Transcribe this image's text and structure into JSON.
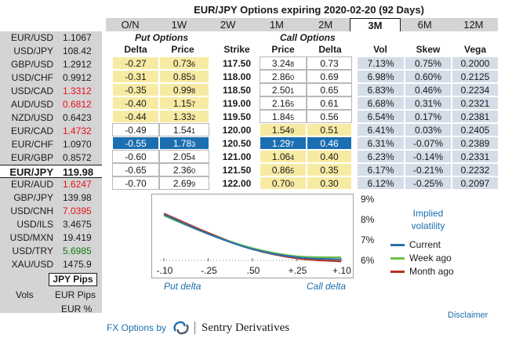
{
  "title": "EUR/JPY Options expiring 2020-02-20 (92 Days)",
  "tabs": [
    "O/N",
    "1W",
    "2W",
    "1M",
    "2M",
    "3M",
    "6M",
    "12M"
  ],
  "active_tab": "3M",
  "left": {
    "rates": [
      {
        "pair": "EUR/USD",
        "rate": "1.1067",
        "color": "black"
      },
      {
        "pair": "USD/JPY",
        "rate": "108.42",
        "color": "black"
      },
      {
        "pair": "GBP/USD",
        "rate": "1.2912",
        "color": "black"
      },
      {
        "pair": "USD/CHF",
        "rate": "0.9912",
        "color": "black"
      },
      {
        "pair": "USD/CAD",
        "rate": "1.3312",
        "color": "red"
      },
      {
        "pair": "AUD/USD",
        "rate": "0.6812",
        "color": "red"
      },
      {
        "pair": "NZD/USD",
        "rate": "0.6423",
        "color": "black"
      },
      {
        "pair": "EUR/CAD",
        "rate": "1.4732",
        "color": "red"
      },
      {
        "pair": "EUR/CHF",
        "rate": "1.0970",
        "color": "black"
      },
      {
        "pair": "EUR/GBP",
        "rate": "0.8572",
        "color": "black"
      },
      {
        "pair": "EUR/JPY",
        "rate": "119.98",
        "color": "black",
        "selected": true
      },
      {
        "pair": "EUR/AUD",
        "rate": "1.6247",
        "color": "red"
      },
      {
        "pair": "GBP/JPY",
        "rate": "139.98",
        "color": "black"
      },
      {
        "pair": "USD/CNH",
        "rate": "7.0395",
        "color": "red"
      },
      {
        "pair": "USD/ILS",
        "rate": "3.4675",
        "color": "black"
      },
      {
        "pair": "USD/MXN",
        "rate": "19.419",
        "color": "black"
      },
      {
        "pair": "USD/TRY",
        "rate": "5.6985",
        "color": "green"
      },
      {
        "pair": "XAU/USD",
        "rate": "1475.9",
        "color": "black"
      }
    ],
    "pips_selected": "JPY Pips",
    "vols_label": "Vols",
    "eur_pips": "EUR Pips",
    "eur_pct": "EUR %"
  },
  "table": {
    "put_header": "Put Options",
    "call_header": "Call Options",
    "columns": {
      "put_delta": "Delta",
      "put_price": "Price",
      "strike": "Strike",
      "call_price": "Price",
      "call_delta": "Delta",
      "vol": "Vol",
      "skew": "Skew",
      "vega": "Vega"
    },
    "rows": [
      {
        "put_delta": "-0.27",
        "put_price": "0.73",
        "put_price_sub": "6",
        "strike": "117.50",
        "call_price": "3.24",
        "call_price_sub": "8",
        "call_delta": "0.73",
        "vol": "7.13%",
        "skew": "0.75%",
        "vega": "0.2000"
      },
      {
        "put_delta": "-0.31",
        "put_price": "0.85",
        "put_price_sub": "3",
        "strike": "118.00",
        "call_price": "2.86",
        "call_price_sub": "0",
        "call_delta": "0.69",
        "vol": "6.98%",
        "skew": "0.60%",
        "vega": "0.2125"
      },
      {
        "put_delta": "-0.35",
        "put_price": "0.99",
        "put_price_sub": "8",
        "strike": "118.50",
        "call_price": "2.50",
        "call_price_sub": "1",
        "call_delta": "0.65",
        "vol": "6.83%",
        "skew": "0.46%",
        "vega": "0.2234"
      },
      {
        "put_delta": "-0.40",
        "put_price": "1.15",
        "put_price_sub": "7",
        "strike": "119.00",
        "call_price": "2.16",
        "call_price_sub": "5",
        "call_delta": "0.61",
        "vol": "6.68%",
        "skew": "0.31%",
        "vega": "0.2321"
      },
      {
        "put_delta": "-0.44",
        "put_price": "1.33",
        "put_price_sub": "2",
        "strike": "119.50",
        "call_price": "1.84",
        "call_price_sub": "5",
        "call_delta": "0.56",
        "vol": "6.54%",
        "skew": "0.17%",
        "vega": "0.2381"
      },
      {
        "put_delta": "-0.49",
        "put_price": "1.54",
        "put_price_sub": "1",
        "strike": "120.00",
        "call_price": "1.54",
        "call_price_sub": "9",
        "call_delta": "0.51",
        "vol": "6.41%",
        "skew": "0.03%",
        "vega": "0.2405"
      },
      {
        "put_delta": "-0.55",
        "put_price": "1.78",
        "put_price_sub": "3",
        "strike": "120.50",
        "call_price": "1.29",
        "call_price_sub": "7",
        "call_delta": "0.46",
        "vol": "6.31%",
        "skew": "-0.07%",
        "vega": "0.2389"
      },
      {
        "put_delta": "-0.60",
        "put_price": "2.05",
        "put_price_sub": "4",
        "strike": "121.00",
        "call_price": "1.06",
        "call_price_sub": "4",
        "call_delta": "0.40",
        "vol": "6.23%",
        "skew": "-0.14%",
        "vega": "0.2331"
      },
      {
        "put_delta": "-0.65",
        "put_price": "2.36",
        "put_price_sub": "0",
        "strike": "121.50",
        "call_price": "0.86",
        "call_price_sub": "5",
        "call_delta": "0.35",
        "vol": "6.17%",
        "skew": "-0.21%",
        "vega": "0.2232"
      },
      {
        "put_delta": "-0.70",
        "put_price": "2.69",
        "put_price_sub": "9",
        "strike": "122.00",
        "call_price": "0.70",
        "call_price_sub": "0",
        "call_delta": "0.30",
        "vol": "6.12%",
        "skew": "-0.25%",
        "vega": "0.2097"
      }
    ],
    "atm_strike": "120.00",
    "selected_strike": "120.50"
  },
  "chart_data": {
    "type": "line",
    "title": "Implied volatility",
    "x_labels": [
      "-.10",
      "-.25",
      ".50",
      "+.25",
      "+.10"
    ],
    "xlabel_left": "Put delta",
    "xlabel_right": "Call delta",
    "y_ticks": [
      "9%",
      "8%",
      "7%",
      "6%"
    ],
    "ylim": [
      6,
      9
    ],
    "series": [
      {
        "name": "Current",
        "color": "#2f6eaa",
        "values": [
          8.25,
          7.3,
          6.55,
          6.15,
          6.05
        ]
      },
      {
        "name": "Week ago",
        "color": "#6cc24a",
        "values": [
          8.2,
          7.3,
          6.6,
          6.2,
          6.15
        ]
      },
      {
        "name": "Month ago",
        "color": "#b8321f",
        "values": [
          8.3,
          7.35,
          6.55,
          6.1,
          5.95
        ]
      }
    ]
  },
  "disclaimer": "Disclaimer",
  "footer": {
    "by": "FX Options by",
    "brand": "Sentry Derivatives"
  }
}
